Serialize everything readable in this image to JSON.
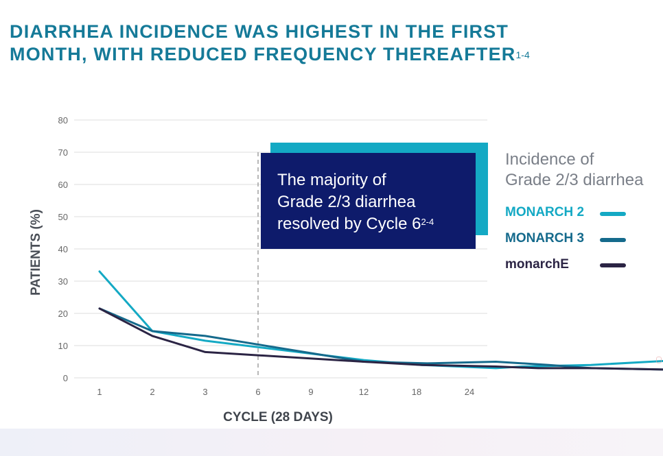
{
  "title": {
    "line1": "DIARRHEA INCIDENCE WAS HIGHEST IN THE FIRST",
    "line2": "MONTH, WITH REDUCED FREQUENCY THEREAFTER",
    "sup": "1-4"
  },
  "callout": {
    "line1": "The majority of",
    "line2": "Grade 2/3 diarrhea",
    "line3": "resolved by Cycle 6",
    "sup": "2-4",
    "bg_color": "#0e1b6b",
    "accent_color": "#14a9c4"
  },
  "legend": {
    "title_line1": "Incidence of",
    "title_line2": "Grade 2/3 diarrhea"
  },
  "chart_data": {
    "type": "line",
    "xlabel": "CYCLE (28 DAYS)",
    "ylabel": "PATIENTS (%)",
    "categories": [
      "1",
      "2",
      "3",
      "6",
      "9",
      "12",
      "18",
      "24"
    ],
    "x_scale": "ordinal",
    "ylim": [
      0,
      80
    ],
    "yticks": [
      0,
      10,
      20,
      30,
      40,
      50,
      60,
      70,
      80
    ],
    "grid": "horizontal",
    "legend_position": "right",
    "reference_line": {
      "x": "6"
    },
    "series": [
      {
        "name": "MONARCH 2",
        "color": "#14a9c4",
        "points": [
          [
            1,
            33
          ],
          [
            2,
            14.5
          ],
          [
            3,
            11.5
          ],
          [
            6,
            5.5
          ],
          [
            7.1,
            4
          ],
          [
            8.5,
            3
          ],
          [
            9,
            3.5
          ],
          [
            10.3,
            4
          ],
          [
            12,
            5.5
          ],
          [
            14.2,
            4.5
          ]
        ]
      },
      {
        "name": "MONARCH 3",
        "color": "#156a8c",
        "points": [
          [
            1,
            21.5
          ],
          [
            2,
            14.5
          ],
          [
            3,
            13
          ],
          [
            6,
            5
          ],
          [
            7.2,
            4.5
          ],
          [
            8.5,
            5
          ],
          [
            9.5,
            4
          ],
          [
            10.3,
            3
          ],
          [
            12,
            2.5
          ],
          [
            14.2,
            1
          ]
        ]
      },
      {
        "name": "monarchE",
        "color": "#2b2444",
        "points": [
          [
            1,
            21.5
          ],
          [
            2,
            13
          ],
          [
            3,
            8
          ],
          [
            6,
            5
          ],
          [
            7.1,
            4
          ],
          [
            8.5,
            3.5
          ],
          [
            9.3,
            3
          ],
          [
            10.3,
            3
          ],
          [
            12,
            2.5
          ],
          [
            14.2,
            1.8
          ]
        ]
      }
    ]
  }
}
